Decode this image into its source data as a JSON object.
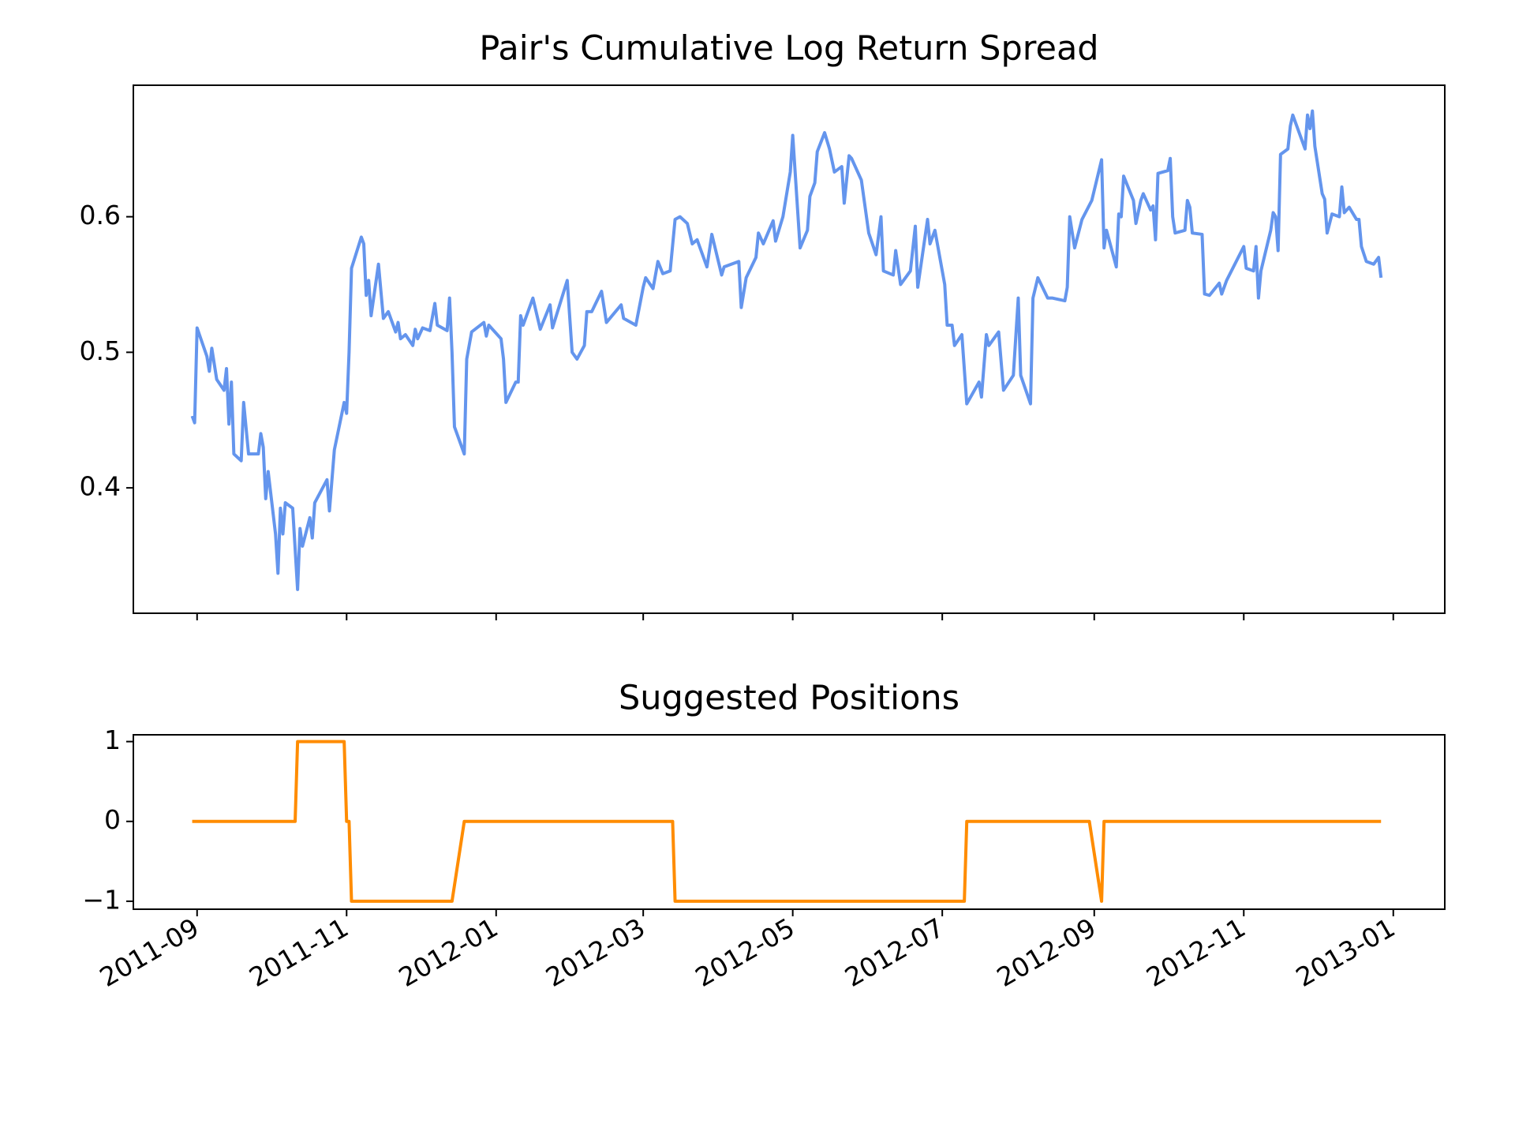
{
  "chart_data": [
    {
      "type": "line",
      "title": "Pair's Cumulative Log Return Spread",
      "xlim": [
        "2011-08-06",
        "2013-01-22"
      ],
      "ylim": [
        0.3075,
        0.697
      ],
      "yticks": [
        0.4,
        0.5,
        0.6
      ],
      "x": [
        "2011-08-30",
        "2011-08-31",
        "2011-09-01",
        "2011-09-05",
        "2011-09-06",
        "2011-09-07",
        "2011-09-09",
        "2011-09-12",
        "2011-09-13",
        "2011-09-14",
        "2011-09-15",
        "2011-09-16",
        "2011-09-19",
        "2011-09-20",
        "2011-09-22",
        "2011-09-26",
        "2011-09-27",
        "2011-09-28",
        "2011-09-29",
        "2011-09-30",
        "2011-10-03",
        "2011-10-04",
        "2011-10-05",
        "2011-10-06",
        "2011-10-07",
        "2011-10-10",
        "2011-10-12",
        "2011-10-13",
        "2011-10-14",
        "2011-10-17",
        "2011-10-18",
        "2011-10-19",
        "2011-10-24",
        "2011-10-25",
        "2011-10-27",
        "2011-10-31",
        "2011-11-01",
        "2011-11-02",
        "2011-11-03",
        "2011-11-07",
        "2011-11-08",
        "2011-11-09",
        "2011-11-10",
        "2011-11-11",
        "2011-11-14",
        "2011-11-16",
        "2011-11-18",
        "2011-11-21",
        "2011-11-22",
        "2011-11-23",
        "2011-11-25",
        "2011-11-28",
        "2011-11-29",
        "2011-11-30",
        "2011-12-02",
        "2011-12-05",
        "2011-12-07",
        "2011-12-08",
        "2011-12-12",
        "2011-12-13",
        "2011-12-14",
        "2011-12-15",
        "2011-12-19",
        "2011-12-20",
        "2011-12-22",
        "2011-12-27",
        "2011-12-28",
        "2011-12-29",
        "2012-01-03",
        "2012-01-04",
        "2012-01-05",
        "2012-01-09",
        "2012-01-10",
        "2012-01-11",
        "2012-01-12",
        "2012-01-16",
        "2012-01-19",
        "2012-01-23",
        "2012-01-24",
        "2012-01-30",
        "2012-02-01",
        "2012-02-03",
        "2012-02-06",
        "2012-02-07",
        "2012-02-09",
        "2012-02-13",
        "2012-02-15",
        "2012-02-21",
        "2012-02-22",
        "2012-02-27",
        "2012-03-01",
        "2012-03-02",
        "2012-03-05",
        "2012-03-07",
        "2012-03-09",
        "2012-03-12",
        "2012-03-14",
        "2012-03-16",
        "2012-03-19",
        "2012-03-21",
        "2012-03-23",
        "2012-03-27",
        "2012-03-29",
        "2012-04-02",
        "2012-04-03",
        "2012-04-09",
        "2012-04-10",
        "2012-04-12",
        "2012-04-16",
        "2012-04-17",
        "2012-04-19",
        "2012-04-23",
        "2012-04-24",
        "2012-04-27",
        "2012-04-30",
        "2012-05-01",
        "2012-05-04",
        "2012-05-07",
        "2012-05-08",
        "2012-05-10",
        "2012-05-11",
        "2012-05-14",
        "2012-05-16",
        "2012-05-18",
        "2012-05-21",
        "2012-05-22",
        "2012-05-24",
        "2012-05-25",
        "2012-05-29",
        "2012-06-01",
        "2012-06-04",
        "2012-06-06",
        "2012-06-07",
        "2012-06-11",
        "2012-06-12",
        "2012-06-14",
        "2012-06-18",
        "2012-06-20",
        "2012-06-21",
        "2012-06-25",
        "2012-06-26",
        "2012-06-28",
        "2012-07-02",
        "2012-07-03",
        "2012-07-05",
        "2012-07-06",
        "2012-07-09",
        "2012-07-11",
        "2012-07-16",
        "2012-07-17",
        "2012-07-19",
        "2012-07-20",
        "2012-07-24",
        "2012-07-26",
        "2012-07-30",
        "2012-08-01",
        "2012-08-02",
        "2012-08-06",
        "2012-08-07",
        "2012-08-09",
        "2012-08-13",
        "2012-08-15",
        "2012-08-20",
        "2012-08-21",
        "2012-08-22",
        "2012-08-24",
        "2012-08-27",
        "2012-08-31",
        "2012-09-04",
        "2012-09-05",
        "2012-09-06",
        "2012-09-10",
        "2012-09-11",
        "2012-09-12",
        "2012-09-13",
        "2012-09-17",
        "2012-09-18",
        "2012-09-20",
        "2012-09-21",
        "2012-09-24",
        "2012-09-25",
        "2012-09-26",
        "2012-09-27",
        "2012-10-01",
        "2012-10-02",
        "2012-10-03",
        "2012-10-04",
        "2012-10-08",
        "2012-10-09",
        "2012-10-10",
        "2012-10-11",
        "2012-10-15",
        "2012-10-16",
        "2012-10-18",
        "2012-10-22",
        "2012-10-23",
        "2012-10-25",
        "2012-11-01",
        "2012-11-02",
        "2012-11-05",
        "2012-11-06",
        "2012-11-07",
        "2012-11-08",
        "2012-11-12",
        "2012-11-13",
        "2012-11-14",
        "2012-11-15",
        "2012-11-16",
        "2012-11-19",
        "2012-11-20",
        "2012-11-21",
        "2012-11-23",
        "2012-11-26",
        "2012-11-27",
        "2012-11-28",
        "2012-11-29",
        "2012-11-30",
        "2012-12-03",
        "2012-12-04",
        "2012-12-05",
        "2012-12-06",
        "2012-12-07",
        "2012-12-10",
        "2012-12-11",
        "2012-12-12",
        "2012-12-14",
        "2012-12-17",
        "2012-12-18",
        "2012-12-19",
        "2012-12-21",
        "2012-12-24",
        "2012-12-26",
        "2012-12-27"
      ],
      "series": [
        {
          "color": "#6495ed",
          "values": [
            0.453,
            0.448,
            0.518,
            0.497,
            0.486,
            0.503,
            0.48,
            0.472,
            0.488,
            0.447,
            0.478,
            0.425,
            0.42,
            0.463,
            0.425,
            0.425,
            0.44,
            0.43,
            0.392,
            0.412,
            0.366,
            0.337,
            0.385,
            0.366,
            0.389,
            0.385,
            0.325,
            0.37,
            0.357,
            0.378,
            0.363,
            0.389,
            0.406,
            0.383,
            0.428,
            0.463,
            0.455,
            0.5,
            0.562,
            0.585,
            0.58,
            0.542,
            0.553,
            0.527,
            0.565,
            0.525,
            0.53,
            0.515,
            0.522,
            0.51,
            0.513,
            0.505,
            0.517,
            0.51,
            0.518,
            0.516,
            0.536,
            0.52,
            0.516,
            0.54,
            0.5,
            0.445,
            0.425,
            0.495,
            0.515,
            0.522,
            0.512,
            0.52,
            0.51,
            0.495,
            0.463,
            0.478,
            0.478,
            0.527,
            0.52,
            0.54,
            0.517,
            0.535,
            0.518,
            0.553,
            0.5,
            0.495,
            0.505,
            0.53,
            0.53,
            0.545,
            0.522,
            0.535,
            0.525,
            0.52,
            0.548,
            0.555,
            0.547,
            0.567,
            0.558,
            0.56,
            0.598,
            0.6,
            0.595,
            0.58,
            0.583,
            0.563,
            0.587,
            0.557,
            0.563,
            0.567,
            0.533,
            0.555,
            0.57,
            0.588,
            0.58,
            0.597,
            0.582,
            0.6,
            0.633,
            0.66,
            0.577,
            0.59,
            0.615,
            0.625,
            0.648,
            0.662,
            0.65,
            0.633,
            0.637,
            0.61,
            0.645,
            0.643,
            0.627,
            0.588,
            0.572,
            0.6,
            0.56,
            0.557,
            0.575,
            0.55,
            0.56,
            0.593,
            0.548,
            0.598,
            0.58,
            0.59,
            0.55,
            0.52,
            0.52,
            0.505,
            0.513,
            0.462,
            0.478,
            0.467,
            0.513,
            0.505,
            0.515,
            0.472,
            0.483,
            0.54,
            0.483,
            0.462,
            0.54,
            0.555,
            0.54,
            0.54,
            0.538,
            0.548,
            0.6,
            0.577,
            0.598,
            0.612,
            0.642,
            0.577,
            0.59,
            0.563,
            0.602,
            0.6,
            0.63,
            0.612,
            0.595,
            0.612,
            0.617,
            0.605,
            0.608,
            0.583,
            0.632,
            0.634,
            0.643,
            0.6,
            0.588,
            0.59,
            0.612,
            0.607,
            0.588,
            0.587,
            0.543,
            0.542,
            0.551,
            0.543,
            0.553,
            0.578,
            0.562,
            0.56,
            0.578,
            0.54,
            0.56,
            0.59,
            0.603,
            0.6,
            0.575,
            0.646,
            0.65,
            0.667,
            0.675,
            0.665,
            0.65,
            0.675,
            0.665,
            0.678,
            0.652,
            0.617,
            0.613,
            0.588,
            0.595,
            0.602,
            0.6,
            0.622,
            0.603,
            0.607,
            0.598,
            0.598,
            0.578,
            0.567,
            0.565,
            0.57,
            0.555
          ]
        }
      ]
    },
    {
      "type": "line",
      "title": "Suggested Positions",
      "xlim": [
        "2011-08-06",
        "2013-01-22"
      ],
      "ylim": [
        -1.1,
        1.085
      ],
      "yticks": [
        {
          "value": -1,
          "label": "−1"
        },
        0,
        1
      ],
      "xticks": [
        "2011-09",
        "2011-11",
        "2012-01",
        "2012-03",
        "2012-05",
        "2012-07",
        "2012-09",
        "2012-11",
        "2013-01"
      ],
      "x": [
        "2011-08-30",
        "2011-10-11",
        "2011-10-12",
        "2011-10-31",
        "2011-11-01",
        "2011-11-02",
        "2011-11-03",
        "2011-12-14",
        "2011-12-19",
        "2012-03-13",
        "2012-03-14",
        "2012-07-10",
        "2012-07-11",
        "2012-08-30",
        "2012-09-04",
        "2012-09-05",
        "2012-12-27"
      ],
      "series": [
        {
          "color": "#ff8c00",
          "values": [
            0,
            0,
            1,
            1,
            0,
            0,
            -1,
            -1,
            0,
            0,
            -1,
            -1,
            0,
            0,
            -1,
            0,
            0
          ]
        }
      ]
    }
  ]
}
